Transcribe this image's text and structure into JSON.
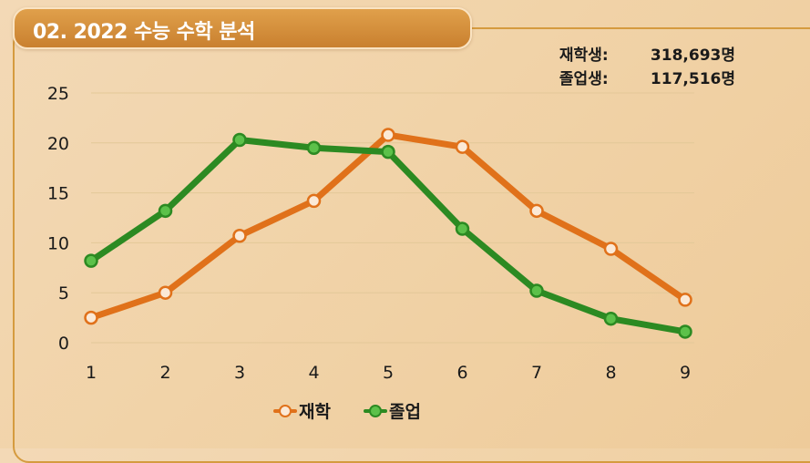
{
  "title": "02. 2022 수능 수학 분석",
  "stats": [
    {
      "label": "재학생:",
      "value": "318,693명"
    },
    {
      "label": "졸업생:",
      "value": "117,516명"
    }
  ],
  "colors": {
    "series_current": "#e0711a",
    "series_grad": "#2c8a22",
    "current_marker_fill": "#fbe9d6",
    "grad_marker_fill": "#5cc14a",
    "grid": "#e3c898"
  },
  "chart_data": {
    "type": "line",
    "title": "",
    "xlabel": "",
    "ylabel": "",
    "x": [
      1,
      2,
      3,
      4,
      5,
      6,
      7,
      8,
      9
    ],
    "ylim": [
      0,
      25
    ],
    "yticks": [
      0,
      5,
      10,
      15,
      20,
      25
    ],
    "grid": true,
    "legend_position": "bottom",
    "series": [
      {
        "name": "재학",
        "values": [
          2.5,
          5.0,
          10.7,
          14.2,
          20.8,
          19.6,
          13.2,
          9.4,
          4.3
        ]
      },
      {
        "name": "졸업",
        "values": [
          8.2,
          13.2,
          20.3,
          19.5,
          19.1,
          11.4,
          5.2,
          2.4,
          1.1
        ]
      }
    ]
  }
}
